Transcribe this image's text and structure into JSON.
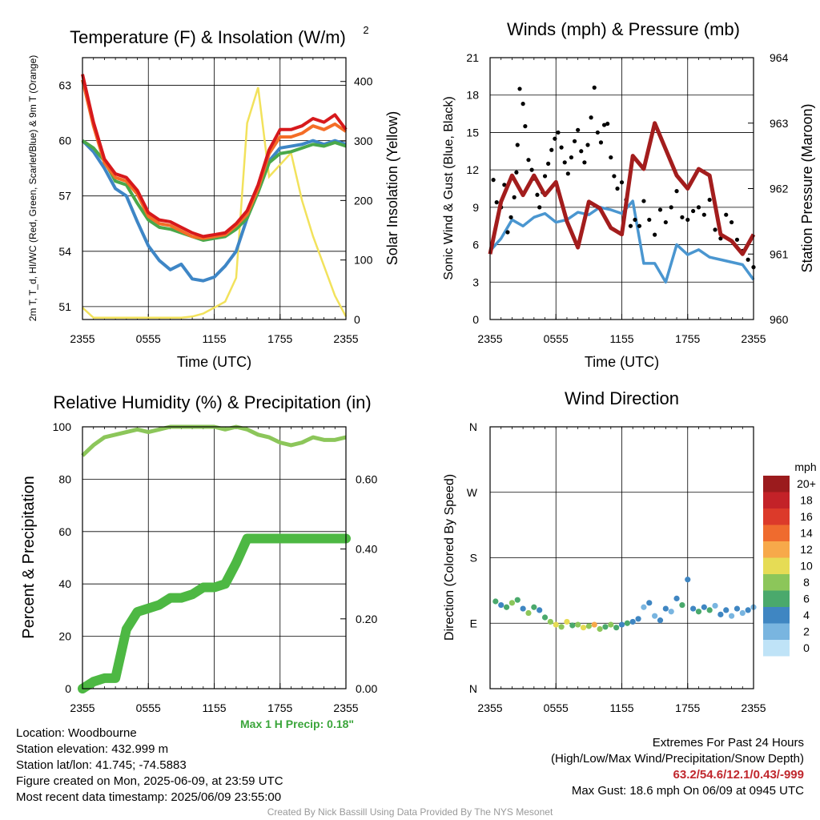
{
  "chart_data": [
    {
      "type": "line",
      "title": "Temperature (F) & Insolation (W/m²)",
      "xlabel": "Time (UTC)",
      "ylabel": "2m T, T_d, HI/WC (Red, Green, Scarlet/Blue) & 9m T (Orange)",
      "y2label": "Solar Insolation (Yellow)",
      "x_ticks": [
        "2355",
        "0555",
        "1155",
        "1755",
        "2355"
      ],
      "ylim": [
        50.3,
        64.5
      ],
      "y_ticks": [
        "51",
        "54",
        "57",
        "60",
        "63"
      ],
      "y2lim": [
        0,
        440
      ],
      "y2_ticks": [
        "0",
        "100",
        "200",
        "300",
        "400"
      ],
      "x": [
        0,
        1,
        2,
        3,
        4,
        5,
        6,
        7,
        8,
        9,
        10,
        11,
        12,
        13,
        14,
        15,
        16,
        17,
        18,
        19,
        20,
        21,
        22,
        23,
        24
      ],
      "series": [
        {
          "name": "2m T",
          "color": "#d7191c",
          "values": [
            63.6,
            61.0,
            59.0,
            58.2,
            58.0,
            57.3,
            56.1,
            55.7,
            55.6,
            55.3,
            55.0,
            54.8,
            54.9,
            55.0,
            55.5,
            56.2,
            57.6,
            59.5,
            60.6,
            60.6,
            60.8,
            61.2,
            61.0,
            61.4,
            60.6
          ]
        },
        {
          "name": "9m T",
          "color": "#f46d27",
          "values": [
            63.3,
            60.8,
            58.8,
            58.0,
            57.8,
            57.1,
            55.9,
            55.5,
            55.4,
            55.1,
            54.8,
            54.7,
            54.8,
            54.9,
            55.4,
            56.0,
            57.4,
            59.3,
            60.2,
            60.2,
            60.4,
            60.8,
            60.6,
            60.9,
            60.5
          ]
        },
        {
          "name": "Dew point",
          "color": "#4aa84a",
          "values": [
            60.0,
            59.6,
            58.9,
            57.8,
            57.6,
            56.6,
            55.7,
            55.3,
            55.2,
            55.0,
            54.8,
            54.6,
            54.7,
            54.8,
            55.2,
            55.8,
            57.2,
            58.8,
            59.3,
            59.4,
            59.6,
            59.8,
            59.7,
            59.9,
            59.7
          ]
        },
        {
          "name": "WC",
          "color": "#3e86c6",
          "values": [
            60.0,
            59.4,
            58.5,
            57.4,
            57.0,
            55.6,
            54.3,
            53.5,
            53.0,
            53.3,
            52.5,
            52.4,
            52.6,
            53.2,
            54.0,
            55.8,
            57.3,
            58.9,
            59.6,
            59.7,
            59.8,
            60.0,
            59.8,
            60.0,
            59.8
          ]
        }
      ],
      "insolation": {
        "name": "Solar Insolation",
        "color": "#f2e25c",
        "values": [
          20,
          3,
          3,
          3,
          3,
          3,
          3,
          3,
          3,
          3,
          5,
          10,
          20,
          30,
          70,
          330,
          390,
          240,
          260,
          280,
          200,
          140,
          90,
          40,
          5
        ]
      }
    },
    {
      "type": "line",
      "title": "Winds (mph) & Pressure (mb)",
      "xlabel": "Time (UTC)",
      "ylabel": "Sonic Wind & Gust (Blue, Black)",
      "y2label": "Station Pressure (Maroon)",
      "x_ticks": [
        "2355",
        "0555",
        "1155",
        "1755",
        "2355"
      ],
      "ylim": [
        0,
        21
      ],
      "y_ticks": [
        "0",
        "3",
        "6",
        "9",
        "12",
        "15",
        "18",
        "21"
      ],
      "y2lim": [
        960,
        964
      ],
      "y2_ticks": [
        "960",
        "961",
        "962",
        "963",
        "964"
      ],
      "x": [
        0,
        1,
        2,
        3,
        4,
        5,
        6,
        7,
        8,
        9,
        10,
        11,
        12,
        13,
        14,
        15,
        16,
        17,
        18,
        19,
        20,
        21,
        22,
        23,
        24
      ],
      "series": [
        {
          "name": "Sonic Wind",
          "color": "#4a96d0",
          "values": [
            5.5,
            6.5,
            8.0,
            7.5,
            8.2,
            8.5,
            7.8,
            8.0,
            8.6,
            8.4,
            9.0,
            8.8,
            8.5,
            9.5,
            4.5,
            4.5,
            3.0,
            6.0,
            5.2,
            5.6,
            5.0,
            4.8,
            4.6,
            4.4,
            3.2
          ]
        },
        {
          "name": "Station Pressure",
          "color": "#a31d1d",
          "values": [
            961.0,
            961.8,
            962.2,
            961.9,
            962.2,
            961.9,
            962.1,
            961.5,
            961.1,
            961.8,
            961.7,
            961.4,
            961.3,
            962.5,
            962.3,
            963.0,
            962.6,
            962.2,
            962.0,
            962.3,
            962.2,
            961.3,
            961.2,
            961.0,
            961.3
          ]
        }
      ],
      "gust_points": [
        [
          0.3,
          11.2
        ],
        [
          0.6,
          9.4
        ],
        [
          1.0,
          9.0
        ],
        [
          1.3,
          10.8
        ],
        [
          1.6,
          7.0
        ],
        [
          1.9,
          8.2
        ],
        [
          2.2,
          9.8
        ],
        [
          2.4,
          11.8
        ],
        [
          2.5,
          14.0
        ],
        [
          2.7,
          18.5
        ],
        [
          3.0,
          17.3
        ],
        [
          3.2,
          15.5
        ],
        [
          3.5,
          12.8
        ],
        [
          3.8,
          12.0
        ],
        [
          4.0,
          11.3
        ],
        [
          4.3,
          10.0
        ],
        [
          4.5,
          9.0
        ],
        [
          4.8,
          10.2
        ],
        [
          5.0,
          11.5
        ],
        [
          5.3,
          12.5
        ],
        [
          5.6,
          13.6
        ],
        [
          5.9,
          14.5
        ],
        [
          6.2,
          15.0
        ],
        [
          6.5,
          13.8
        ],
        [
          6.8,
          12.6
        ],
        [
          7.1,
          11.7
        ],
        [
          7.4,
          13.0
        ],
        [
          7.7,
          14.3
        ],
        [
          8.0,
          15.2
        ],
        [
          8.3,
          13.5
        ],
        [
          8.6,
          12.6
        ],
        [
          8.9,
          14.0
        ],
        [
          9.2,
          16.2
        ],
        [
          9.5,
          18.6
        ],
        [
          9.8,
          15.0
        ],
        [
          10.1,
          14.2
        ],
        [
          10.4,
          15.6
        ],
        [
          10.7,
          15.7
        ],
        [
          11.0,
          13.0
        ],
        [
          11.3,
          11.5
        ],
        [
          11.6,
          10.5
        ],
        [
          12.0,
          11.0
        ],
        [
          12.4,
          9.6
        ],
        [
          12.8,
          7.5
        ],
        [
          13.2,
          8.0
        ],
        [
          13.6,
          7.5
        ],
        [
          14.0,
          9.5
        ],
        [
          14.5,
          8.0
        ],
        [
          15.0,
          6.8
        ],
        [
          15.5,
          8.8
        ],
        [
          16.0,
          7.8
        ],
        [
          16.5,
          9.0
        ],
        [
          17.0,
          10.3
        ],
        [
          17.5,
          8.2
        ],
        [
          18.0,
          8.0
        ],
        [
          18.5,
          8.7
        ],
        [
          19.0,
          9.0
        ],
        [
          19.5,
          8.4
        ],
        [
          20.0,
          9.6
        ],
        [
          20.5,
          7.2
        ],
        [
          21.0,
          6.5
        ],
        [
          21.5,
          8.4
        ],
        [
          22.0,
          7.8
        ],
        [
          22.5,
          6.4
        ],
        [
          23.0,
          5.5
        ],
        [
          23.5,
          4.8
        ],
        [
          24.0,
          4.2
        ]
      ],
      "gust_color": "#000000"
    },
    {
      "type": "line",
      "title": "Relative Humidity (%) & Precipitation (in)",
      "ylabel": "Percent & Precipitation",
      "x_ticks": [
        "2355",
        "0555",
        "1155",
        "1755",
        "2355"
      ],
      "ylim": [
        0,
        100
      ],
      "y_ticks": [
        "0",
        "20",
        "40",
        "60",
        "80",
        "100"
      ],
      "y2lim": [
        0,
        0.75
      ],
      "y2_ticks": [
        "0.00",
        "0.20",
        "0.40",
        "0.60"
      ],
      "x": [
        0,
        1,
        2,
        3,
        4,
        5,
        6,
        7,
        8,
        9,
        10,
        11,
        12,
        13,
        14,
        15,
        16,
        17,
        18,
        19,
        20,
        21,
        22,
        23,
        24
      ],
      "series": [
        {
          "name": "Relative Humidity",
          "color": "#8cc65a",
          "values": [
            89,
            93,
            96,
            97,
            98,
            99,
            98,
            99,
            100,
            100,
            100,
            100,
            100,
            99,
            100,
            99,
            97,
            96,
            94,
            93,
            94,
            96,
            95,
            95,
            96
          ]
        },
        {
          "name": "Precipitation",
          "color": "#4db843",
          "values": [
            0.0,
            0.02,
            0.03,
            0.03,
            0.17,
            0.22,
            0.23,
            0.24,
            0.26,
            0.26,
            0.27,
            0.29,
            0.29,
            0.3,
            0.36,
            0.43,
            0.43,
            0.43,
            0.43,
            0.43,
            0.43,
            0.43,
            0.43,
            0.43,
            0.43
          ]
        }
      ],
      "annotation": "Max 1 H Precip: 0.18\""
    },
    {
      "type": "scatter",
      "title": "Wind Direction",
      "ylabel": "Direction (Colored By Speed)",
      "x_ticks": [
        "2355",
        "0555",
        "1155",
        "1755",
        "2355"
      ],
      "y_ticks": [
        "N",
        "E",
        "S",
        "W",
        "N"
      ],
      "ylim": [
        0,
        360
      ],
      "points": [
        [
          0.5,
          120,
          6
        ],
        [
          1.0,
          115,
          4
        ],
        [
          1.5,
          112,
          6
        ],
        [
          2.0,
          118,
          8
        ],
        [
          2.5,
          122,
          6
        ],
        [
          3.0,
          110,
          4
        ],
        [
          3.5,
          104,
          8
        ],
        [
          4.0,
          112,
          6
        ],
        [
          4.5,
          108,
          4
        ],
        [
          5.0,
          98,
          6
        ],
        [
          5.5,
          92,
          8
        ],
        [
          6.0,
          88,
          10
        ],
        [
          6.5,
          85,
          8
        ],
        [
          7.0,
          92,
          10
        ],
        [
          7.5,
          87,
          6
        ],
        [
          8.0,
          88,
          8
        ],
        [
          8.5,
          84,
          10
        ],
        [
          9.0,
          86,
          8
        ],
        [
          9.5,
          88,
          12
        ],
        [
          10.0,
          82,
          8
        ],
        [
          10.5,
          85,
          6
        ],
        [
          11.0,
          88,
          8
        ],
        [
          11.5,
          84,
          6
        ],
        [
          12.0,
          88,
          4
        ],
        [
          12.5,
          90,
          6
        ],
        [
          13.0,
          92,
          4
        ],
        [
          13.5,
          96,
          4
        ],
        [
          14.0,
          112,
          2
        ],
        [
          14.5,
          118,
          4
        ],
        [
          15.0,
          100,
          2
        ],
        [
          15.5,
          94,
          4
        ],
        [
          16.0,
          110,
          4
        ],
        [
          16.5,
          106,
          2
        ],
        [
          17.0,
          124,
          4
        ],
        [
          17.5,
          115,
          6
        ],
        [
          18.0,
          150,
          4
        ],
        [
          18.5,
          110,
          4
        ],
        [
          19.0,
          106,
          6
        ],
        [
          19.5,
          112,
          4
        ],
        [
          20.0,
          108,
          6
        ],
        [
          20.5,
          114,
          2
        ],
        [
          21.0,
          102,
          4
        ],
        [
          21.5,
          108,
          4
        ],
        [
          22.0,
          100,
          2
        ],
        [
          22.5,
          110,
          4
        ],
        [
          23.0,
          104,
          2
        ],
        [
          23.5,
          108,
          4
        ],
        [
          24.0,
          112,
          2
        ]
      ],
      "legend": {
        "title": "mph",
        "labels": [
          "20+",
          "18",
          "16",
          "14",
          "12",
          "10",
          "8",
          "6",
          "4",
          "2",
          "0"
        ],
        "colors": [
          "#9b1b1d",
          "#c32228",
          "#dc3a2a",
          "#ef6b2e",
          "#f7a94a",
          "#e6dc55",
          "#8cc65a",
          "#4aa96c",
          "#3f86c2",
          "#79b5e0",
          "#bfe3f7"
        ]
      }
    }
  ],
  "info": {
    "location": "Location: Woodbourne",
    "elevation": "Station elevation: 432.999 m",
    "latlon": "Station lat/lon: 41.745; -74.5883",
    "created": "Figure created on Mon, 2025-06-09, at 23:59 UTC",
    "recent": "Most recent data timestamp: 2025/06/09 23:55:00"
  },
  "extremes": {
    "title": "Extremes For Past 24 Hours",
    "subtitle": "(High/Low/Max Wind/Precipitation/Snow Depth)",
    "values": "63.2/54.6/12.1/0.43/-999",
    "gust": "Max Gust: 18.6 mph On 06/09 at 0945 UTC"
  },
  "credit": "Created By Nick Bassill Using Data Provided By The NYS Mesonet"
}
